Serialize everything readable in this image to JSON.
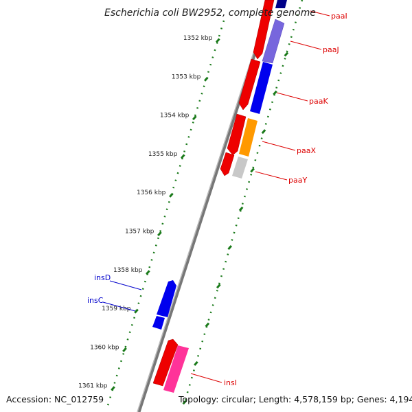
{
  "title": "Escherichia coli BW2952, complete genome",
  "footer": {
    "accession": "Accession: NC_012759",
    "summary": "Topology: circular; Length: 4,578,159 bp; Genes: 4,194"
  },
  "colors": {
    "backbone": "#888888",
    "scale_ticks": "#1a7a1a",
    "label_red": "#dd0000",
    "label_blue": "#0000cc",
    "gene_red": "#ee0000",
    "gene_blue": "#0000ee",
    "gene_lavender": "#7766dd",
    "gene_orange": "#ff9900",
    "gene_gray": "#c8c8c8",
    "gene_pink": "#ff3399",
    "gene_navy": "#000088"
  },
  "ticks": [
    {
      "kbp": 1352,
      "label": "1352 kbp"
    },
    {
      "kbp": 1353,
      "label": "1353 kbp"
    },
    {
      "kbp": 1354,
      "label": "1354 kbp"
    },
    {
      "kbp": 1355,
      "label": "1355 kbp"
    },
    {
      "kbp": 1356,
      "label": "1356 kbp"
    },
    {
      "kbp": 1357,
      "label": "1357 kbp"
    },
    {
      "kbp": 1358,
      "label": "1358 kbp"
    },
    {
      "kbp": 1359,
      "label": "1359 kbp"
    },
    {
      "kbp": 1360,
      "label": "1360 kbp"
    },
    {
      "kbp": 1361,
      "label": "1361 kbp"
    }
  ],
  "gene_labels": [
    {
      "name": "paaI",
      "color": "red"
    },
    {
      "name": "paaJ",
      "color": "red"
    },
    {
      "name": "paaK",
      "color": "red"
    },
    {
      "name": "paaX",
      "color": "red"
    },
    {
      "name": "paaY",
      "color": "red"
    },
    {
      "name": "insD",
      "color": "blue"
    },
    {
      "name": "insC",
      "color": "blue"
    },
    {
      "name": "insI",
      "color": "red"
    }
  ]
}
